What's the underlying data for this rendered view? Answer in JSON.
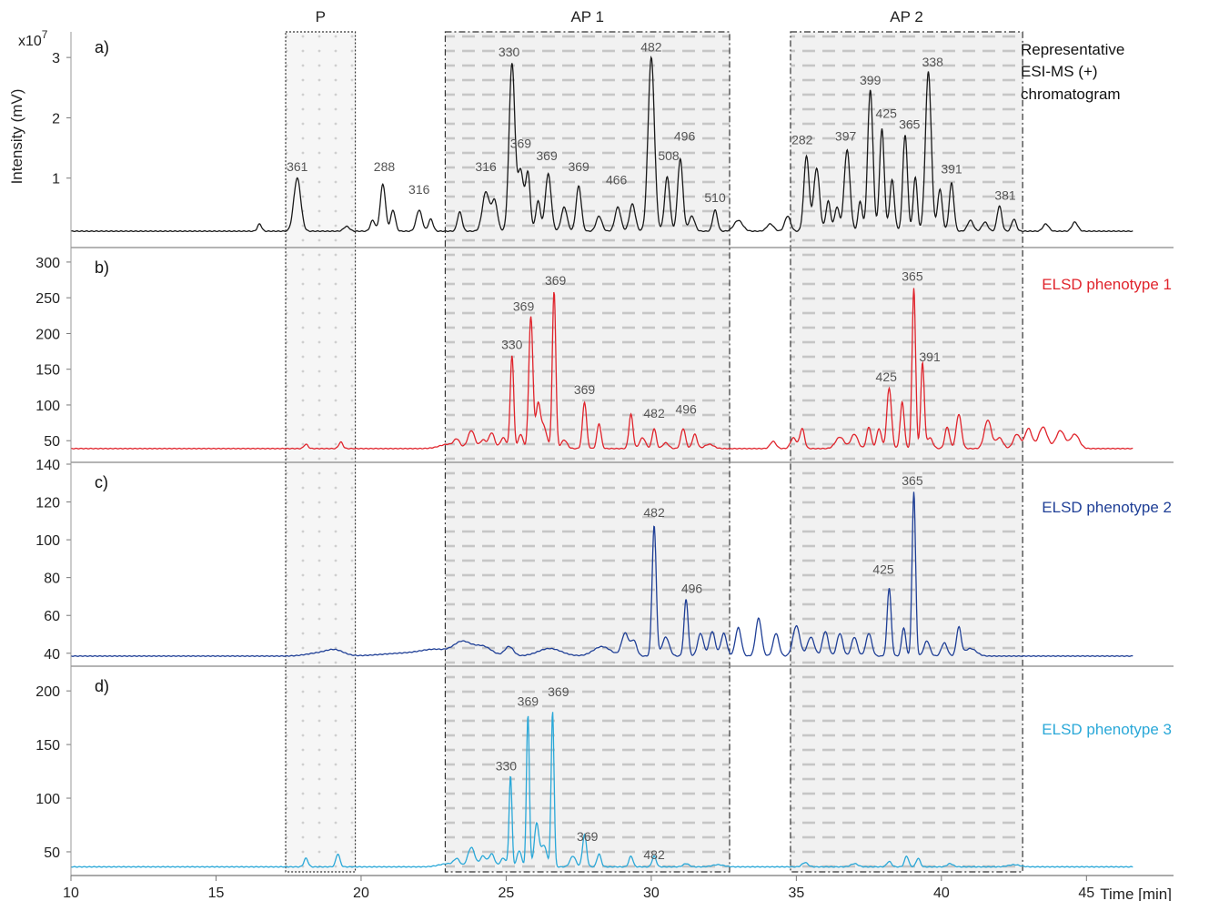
{
  "chart_data": {
    "type": "line",
    "xlabel": "Time [min]",
    "xlim": [
      10,
      48
    ],
    "xticks": [
      10,
      15,
      20,
      25,
      30,
      35,
      40,
      45
    ],
    "ylabel": "Intensity (mV)",
    "regions": [
      {
        "label": "P",
        "x": [
          17.4,
          19.8
        ],
        "style": "dotted"
      },
      {
        "label": "AP 1",
        "x": [
          22.9,
          32.7
        ],
        "style": "dash-dot"
      },
      {
        "label": "AP 2",
        "x": [
          34.8,
          42.8
        ],
        "style": "dash-dot"
      }
    ],
    "panels": [
      {
        "panel_label": "a)",
        "name_lines": [
          "Representative",
          "ESI-MS (+)",
          "chromatogram"
        ],
        "color": "#1a1a1a",
        "axis_exponent": "x10",
        "axis_exponent_power": "7",
        "ylim": [
          0,
          3.5
        ],
        "yticks": [
          1,
          2,
          3
        ],
        "baseline": 0.12,
        "peaks": [
          [
            16.5,
            0.12,
            0.07
          ],
          [
            17.8,
            0.88,
            0.12
          ],
          [
            19.5,
            0.08,
            0.1
          ],
          [
            20.4,
            0.18,
            0.08
          ],
          [
            20.75,
            0.78,
            0.09
          ],
          [
            21.1,
            0.35,
            0.08
          ],
          [
            22.0,
            0.35,
            0.1
          ],
          [
            22.4,
            0.2,
            0.08
          ],
          [
            23.4,
            0.32,
            0.08
          ],
          [
            24.3,
            0.65,
            0.12
          ],
          [
            24.6,
            0.5,
            0.1
          ],
          [
            25.2,
            2.78,
            0.1
          ],
          [
            25.5,
            1.0,
            0.1
          ],
          [
            25.75,
            0.95,
            0.08
          ],
          [
            26.1,
            0.5,
            0.08
          ],
          [
            26.45,
            0.95,
            0.1
          ],
          [
            27.0,
            0.4,
            0.1
          ],
          [
            27.5,
            0.75,
            0.09
          ],
          [
            28.2,
            0.25,
            0.1
          ],
          [
            28.85,
            0.4,
            0.1
          ],
          [
            29.35,
            0.45,
            0.1
          ],
          [
            30.0,
            2.88,
            0.11
          ],
          [
            30.55,
            0.9,
            0.09
          ],
          [
            31.0,
            1.2,
            0.09
          ],
          [
            31.4,
            0.25,
            0.1
          ],
          [
            32.2,
            0.35,
            0.08
          ],
          [
            33.0,
            0.18,
            0.15
          ],
          [
            34.1,
            0.12,
            0.12
          ],
          [
            34.7,
            0.25,
            0.1
          ],
          [
            35.35,
            1.25,
            0.09
          ],
          [
            35.7,
            1.05,
            0.1
          ],
          [
            36.1,
            0.5,
            0.08
          ],
          [
            36.4,
            0.4,
            0.08
          ],
          [
            36.75,
            1.35,
            0.1
          ],
          [
            37.2,
            0.5,
            0.07
          ],
          [
            37.55,
            2.35,
            0.09
          ],
          [
            37.95,
            1.7,
            0.08
          ],
          [
            38.3,
            0.85,
            0.08
          ],
          [
            38.75,
            1.6,
            0.08
          ],
          [
            39.1,
            0.9,
            0.07
          ],
          [
            39.55,
            2.65,
            0.1
          ],
          [
            39.95,
            0.7,
            0.08
          ],
          [
            40.35,
            0.8,
            0.08
          ],
          [
            41.0,
            0.18,
            0.1
          ],
          [
            41.5,
            0.15,
            0.1
          ],
          [
            42.0,
            0.42,
            0.08
          ],
          [
            42.5,
            0.2,
            0.08
          ],
          [
            43.6,
            0.12,
            0.1
          ],
          [
            44.6,
            0.15,
            0.1
          ]
        ],
        "labels": [
          {
            "text": "361",
            "x": 17.8,
            "y": 1.12
          },
          {
            "text": "288",
            "x": 20.8,
            "y": 1.12
          },
          {
            "text": "316",
            "x": 22.0,
            "y": 0.74
          },
          {
            "text": "316",
            "x": 24.3,
            "y": 1.12
          },
          {
            "text": "330",
            "x": 25.1,
            "y": 3.02
          },
          {
            "text": "369",
            "x": 25.5,
            "y": 1.5
          },
          {
            "text": "369",
            "x": 26.4,
            "y": 1.3
          },
          {
            "text": "369",
            "x": 27.5,
            "y": 1.12
          },
          {
            "text": "466",
            "x": 28.8,
            "y": 0.9
          },
          {
            "text": "482",
            "x": 30.0,
            "y": 3.1
          },
          {
            "text": "496",
            "x": 31.15,
            "y": 1.62
          },
          {
            "text": "508",
            "x": 30.6,
            "y": 1.3
          },
          {
            "text": "510",
            "x": 32.2,
            "y": 0.6
          },
          {
            "text": "282",
            "x": 35.2,
            "y": 1.56
          },
          {
            "text": "397",
            "x": 36.7,
            "y": 1.62
          },
          {
            "text": "399",
            "x": 37.55,
            "y": 2.55
          },
          {
            "text": "425",
            "x": 38.1,
            "y": 2.0
          },
          {
            "text": "365",
            "x": 38.9,
            "y": 1.82
          },
          {
            "text": "338",
            "x": 39.7,
            "y": 2.85
          },
          {
            "text": "391",
            "x": 40.35,
            "y": 1.08
          },
          {
            "text": "381",
            "x": 42.2,
            "y": 0.64
          }
        ]
      },
      {
        "panel_label": "b)",
        "name_lines": [
          "ELSD phenotype 1"
        ],
        "color": "#e0242c",
        "ylim": [
          35,
          305
        ],
        "yticks": [
          50,
          100,
          150,
          200,
          250,
          300
        ],
        "baseline": 39,
        "peaks": [
          [
            18.1,
            6,
            0.07
          ],
          [
            19.3,
            9,
            0.07
          ],
          [
            23.0,
            6,
            0.3
          ],
          [
            23.3,
            10,
            0.1
          ],
          [
            23.8,
            25,
            0.12
          ],
          [
            24.2,
            12,
            0.1
          ],
          [
            24.5,
            22,
            0.1
          ],
          [
            24.9,
            15,
            0.1
          ],
          [
            25.2,
            130,
            0.06
          ],
          [
            25.5,
            20,
            0.08
          ],
          [
            25.85,
            185,
            0.07
          ],
          [
            26.1,
            60,
            0.08
          ],
          [
            26.65,
            220,
            0.06
          ],
          [
            26.3,
            30,
            0.1
          ],
          [
            27.0,
            12,
            0.1
          ],
          [
            27.7,
            65,
            0.07
          ],
          [
            28.2,
            35,
            0.07
          ],
          [
            29.3,
            48,
            0.07
          ],
          [
            29.7,
            15,
            0.1
          ],
          [
            30.1,
            28,
            0.07
          ],
          [
            30.5,
            8,
            0.1
          ],
          [
            31.1,
            28,
            0.08
          ],
          [
            31.5,
            20,
            0.08
          ],
          [
            32.0,
            6,
            0.15
          ],
          [
            34.2,
            10,
            0.1
          ],
          [
            34.9,
            15,
            0.1
          ],
          [
            35.2,
            28,
            0.08
          ],
          [
            36.5,
            16,
            0.15
          ],
          [
            37.0,
            20,
            0.12
          ],
          [
            37.5,
            30,
            0.08
          ],
          [
            37.85,
            28,
            0.08
          ],
          [
            38.2,
            85,
            0.08
          ],
          [
            38.65,
            65,
            0.07
          ],
          [
            39.05,
            225,
            0.06
          ],
          [
            39.35,
            120,
            0.06
          ],
          [
            39.6,
            15,
            0.1
          ],
          [
            40.2,
            30,
            0.08
          ],
          [
            40.6,
            48,
            0.09
          ],
          [
            41.6,
            40,
            0.12
          ],
          [
            42.0,
            15,
            0.12
          ],
          [
            42.6,
            20,
            0.12
          ],
          [
            43.0,
            28,
            0.12
          ],
          [
            43.5,
            30,
            0.15
          ],
          [
            44.1,
            25,
            0.15
          ],
          [
            44.6,
            20,
            0.15
          ]
        ],
        "labels": [
          {
            "text": "330",
            "x": 25.2,
            "y": 178
          },
          {
            "text": "369",
            "x": 25.6,
            "y": 232
          },
          {
            "text": "369",
            "x": 26.7,
            "y": 268
          },
          {
            "text": "369",
            "x": 27.7,
            "y": 115
          },
          {
            "text": "482",
            "x": 30.1,
            "y": 82
          },
          {
            "text": "496",
            "x": 31.2,
            "y": 88
          },
          {
            "text": "425",
            "x": 38.1,
            "y": 133
          },
          {
            "text": "365",
            "x": 39.0,
            "y": 274
          },
          {
            "text": "391",
            "x": 39.6,
            "y": 161
          }
        ]
      },
      {
        "panel_label": "c)",
        "name_lines": [
          "ELSD phenotype 2"
        ],
        "color": "#1f3f96",
        "ylim": [
          37,
          140
        ],
        "yticks": [
          40,
          60,
          80,
          100,
          120,
          140
        ],
        "baseline": 38.5,
        "peaks": [
          [
            18.5,
            1.5,
            0.4
          ],
          [
            19.1,
            3,
            0.3
          ],
          [
            21.5,
            1.5,
            0.8
          ],
          [
            22.6,
            3,
            0.5
          ],
          [
            23.5,
            7,
            0.3
          ],
          [
            24.2,
            5,
            0.3
          ],
          [
            25.1,
            5,
            0.15
          ],
          [
            26.5,
            4,
            0.4
          ],
          [
            28.3,
            5,
            0.3
          ],
          [
            29.1,
            12,
            0.12
          ],
          [
            29.4,
            8,
            0.1
          ],
          [
            30.1,
            69,
            0.07
          ],
          [
            30.5,
            10,
            0.12
          ],
          [
            31.2,
            30,
            0.07
          ],
          [
            31.7,
            12,
            0.1
          ],
          [
            32.1,
            13,
            0.1
          ],
          [
            32.5,
            12,
            0.1
          ],
          [
            33.0,
            15,
            0.1
          ],
          [
            33.7,
            20,
            0.1
          ],
          [
            34.3,
            12,
            0.1
          ],
          [
            35.0,
            16,
            0.12
          ],
          [
            35.5,
            10,
            0.12
          ],
          [
            36.0,
            13,
            0.1
          ],
          [
            36.5,
            12,
            0.1
          ],
          [
            37.0,
            10,
            0.1
          ],
          [
            37.5,
            12,
            0.1
          ],
          [
            38.2,
            36,
            0.07
          ],
          [
            38.7,
            15,
            0.07
          ],
          [
            39.05,
            87,
            0.06
          ],
          [
            39.5,
            8,
            0.1
          ],
          [
            40.1,
            7,
            0.1
          ],
          [
            40.6,
            15,
            0.08
          ],
          [
            41.0,
            4,
            0.2
          ]
        ],
        "labels": [
          {
            "text": "482",
            "x": 30.1,
            "y": 112
          },
          {
            "text": "496",
            "x": 31.4,
            "y": 72
          },
          {
            "text": "425",
            "x": 38.0,
            "y": 82
          },
          {
            "text": "365",
            "x": 39.0,
            "y": 129
          }
        ]
      },
      {
        "panel_label": "d)",
        "name_lines": [
          "ELSD phenotype 3"
        ],
        "color": "#2aa8d8",
        "ylim": [
          33,
          212
        ],
        "yticks": [
          50,
          100,
          150,
          200
        ],
        "baseline": 36,
        "peaks": [
          [
            18.1,
            8,
            0.07
          ],
          [
            19.2,
            12,
            0.07
          ],
          [
            23.0,
            3,
            0.3
          ],
          [
            23.3,
            6,
            0.1
          ],
          [
            23.8,
            18,
            0.12
          ],
          [
            24.2,
            10,
            0.1
          ],
          [
            24.5,
            12,
            0.1
          ],
          [
            24.9,
            8,
            0.1
          ],
          [
            25.15,
            85,
            0.05
          ],
          [
            25.45,
            15,
            0.08
          ],
          [
            25.75,
            142,
            0.05
          ],
          [
            26.05,
            40,
            0.08
          ],
          [
            26.6,
            145,
            0.05
          ],
          [
            26.3,
            20,
            0.1
          ],
          [
            27.3,
            10,
            0.1
          ],
          [
            27.7,
            30,
            0.07
          ],
          [
            28.2,
            12,
            0.07
          ],
          [
            29.3,
            10,
            0.07
          ],
          [
            30.1,
            10,
            0.07
          ],
          [
            31.2,
            3,
            0.1
          ],
          [
            32.3,
            2,
            0.2
          ],
          [
            35.3,
            4,
            0.1
          ],
          [
            37.0,
            3,
            0.12
          ],
          [
            38.2,
            5,
            0.08
          ],
          [
            38.8,
            10,
            0.07
          ],
          [
            39.2,
            8,
            0.07
          ],
          [
            40.3,
            3,
            0.1
          ],
          [
            42.5,
            2,
            0.2
          ]
        ],
        "labels": [
          {
            "text": "330",
            "x": 25.0,
            "y": 126
          },
          {
            "text": "369",
            "x": 25.75,
            "y": 186
          },
          {
            "text": "369",
            "x": 26.8,
            "y": 195
          },
          {
            "text": "369",
            "x": 27.8,
            "y": 60
          },
          {
            "text": "482",
            "x": 30.1,
            "y": 43
          }
        ]
      }
    ]
  }
}
